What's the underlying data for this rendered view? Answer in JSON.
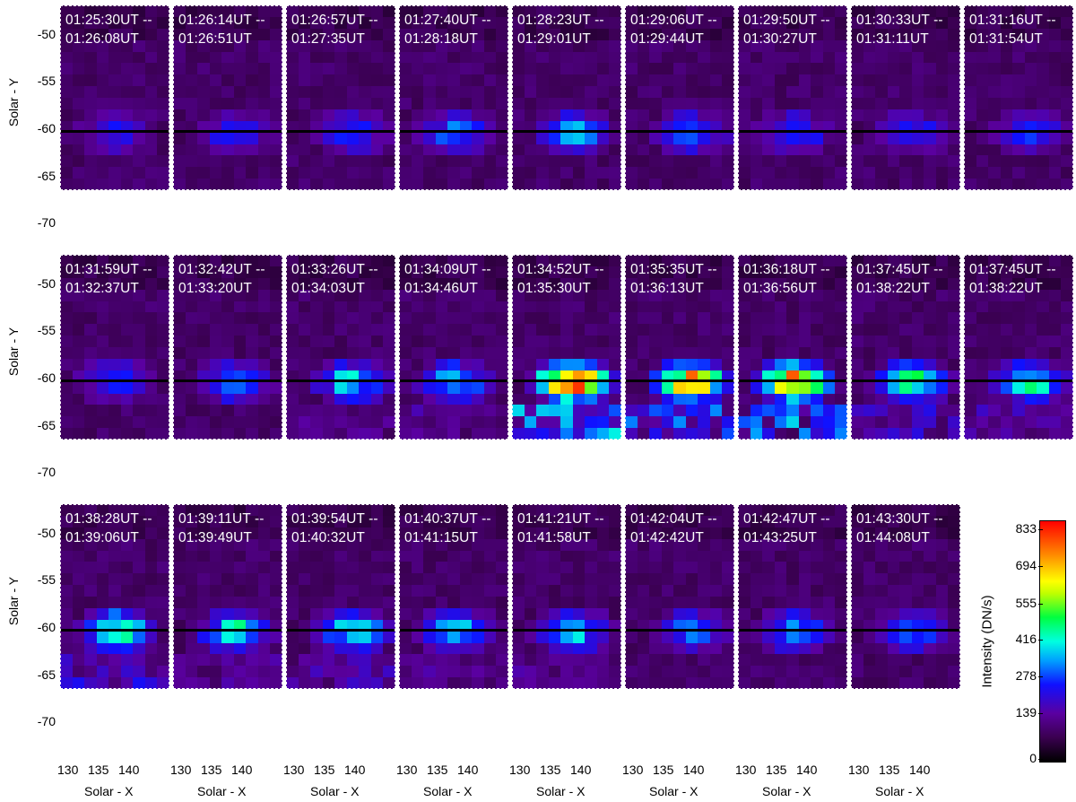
{
  "figure": {
    "ylabel": "Solar - Y",
    "xlabel": "Solar - X",
    "y_ticks": [
      "-50",
      "-55",
      "-60",
      "-65",
      "-70"
    ],
    "x_ticks": [
      "130",
      "135",
      "140"
    ],
    "panels": [
      {
        "start": "01:25:30UT --",
        "end": "01:26:08UT",
        "peak": 0.22
      },
      {
        "start": "01:26:14UT --",
        "end": "01:26:51UT",
        "peak": 0.22
      },
      {
        "start": "01:26:57UT --",
        "end": "01:27:35UT",
        "peak": 0.28
      },
      {
        "start": "01:27:40UT --",
        "end": "01:28:18UT",
        "peak": 0.32
      },
      {
        "start": "01:28:23UT --",
        "end": "01:29:01UT",
        "peak": 0.38
      },
      {
        "start": "01:29:06UT --",
        "end": "01:29:44UT",
        "peak": 0.3
      },
      {
        "start": "01:29:50UT --",
        "end": "01:30:27UT",
        "peak": 0.26
      },
      {
        "start": "01:30:33UT --",
        "end": "01:31:11UT",
        "peak": 0.24
      },
      {
        "start": "01:31:16UT --",
        "end": "01:31:54UT",
        "peak": 0.24
      },
      {
        "start": "01:31:59UT --",
        "end": "01:32:37UT",
        "peak": 0.26
      },
      {
        "start": "01:32:42UT --",
        "end": "01:33:20UT",
        "peak": 0.34
      },
      {
        "start": "01:33:26UT --",
        "end": "01:34:03UT",
        "peak": 0.42
      },
      {
        "start": "01:34:09UT --",
        "end": "01:34:46UT",
        "peak": 0.42
      },
      {
        "start": "01:34:52UT --",
        "end": "01:35:30UT",
        "peak": 0.95
      },
      {
        "start": "01:35:35UT --",
        "end": "01:36:13UT",
        "peak": 0.8
      },
      {
        "start": "01:36:18UT --",
        "end": "01:36:56UT",
        "peak": 0.85
      },
      {
        "start": "01:37:45UT --",
        "end": "01:38:22UT",
        "peak": 0.55
      },
      {
        "start": "01:37:45UT --",
        "end": "01:38:22UT",
        "peak": 0.48
      },
      {
        "start": "01:38:28UT --",
        "end": "01:39:06UT",
        "peak": 0.55
      },
      {
        "start": "01:39:11UT --",
        "end": "01:39:49UT",
        "peak": 0.45
      },
      {
        "start": "01:39:54UT --",
        "end": "01:40:32UT",
        "peak": 0.48
      },
      {
        "start": "01:40:37UT --",
        "end": "01:41:15UT",
        "peak": 0.42
      },
      {
        "start": "01:41:21UT --",
        "end": "01:41:58UT",
        "peak": 0.42
      },
      {
        "start": "01:42:04UT --",
        "end": "01:42:42UT",
        "peak": 0.34
      },
      {
        "start": "01:42:47UT --",
        "end": "01:43:25UT",
        "peak": 0.36
      },
      {
        "start": "01:43:30UT --",
        "end": "01:44:08UT",
        "peak": 0.32
      }
    ]
  },
  "colorbar": {
    "title": "Intensity (DN/s)",
    "ticks": [
      "833",
      "694",
      "555",
      "416",
      "278",
      "139",
      "0"
    ]
  }
}
